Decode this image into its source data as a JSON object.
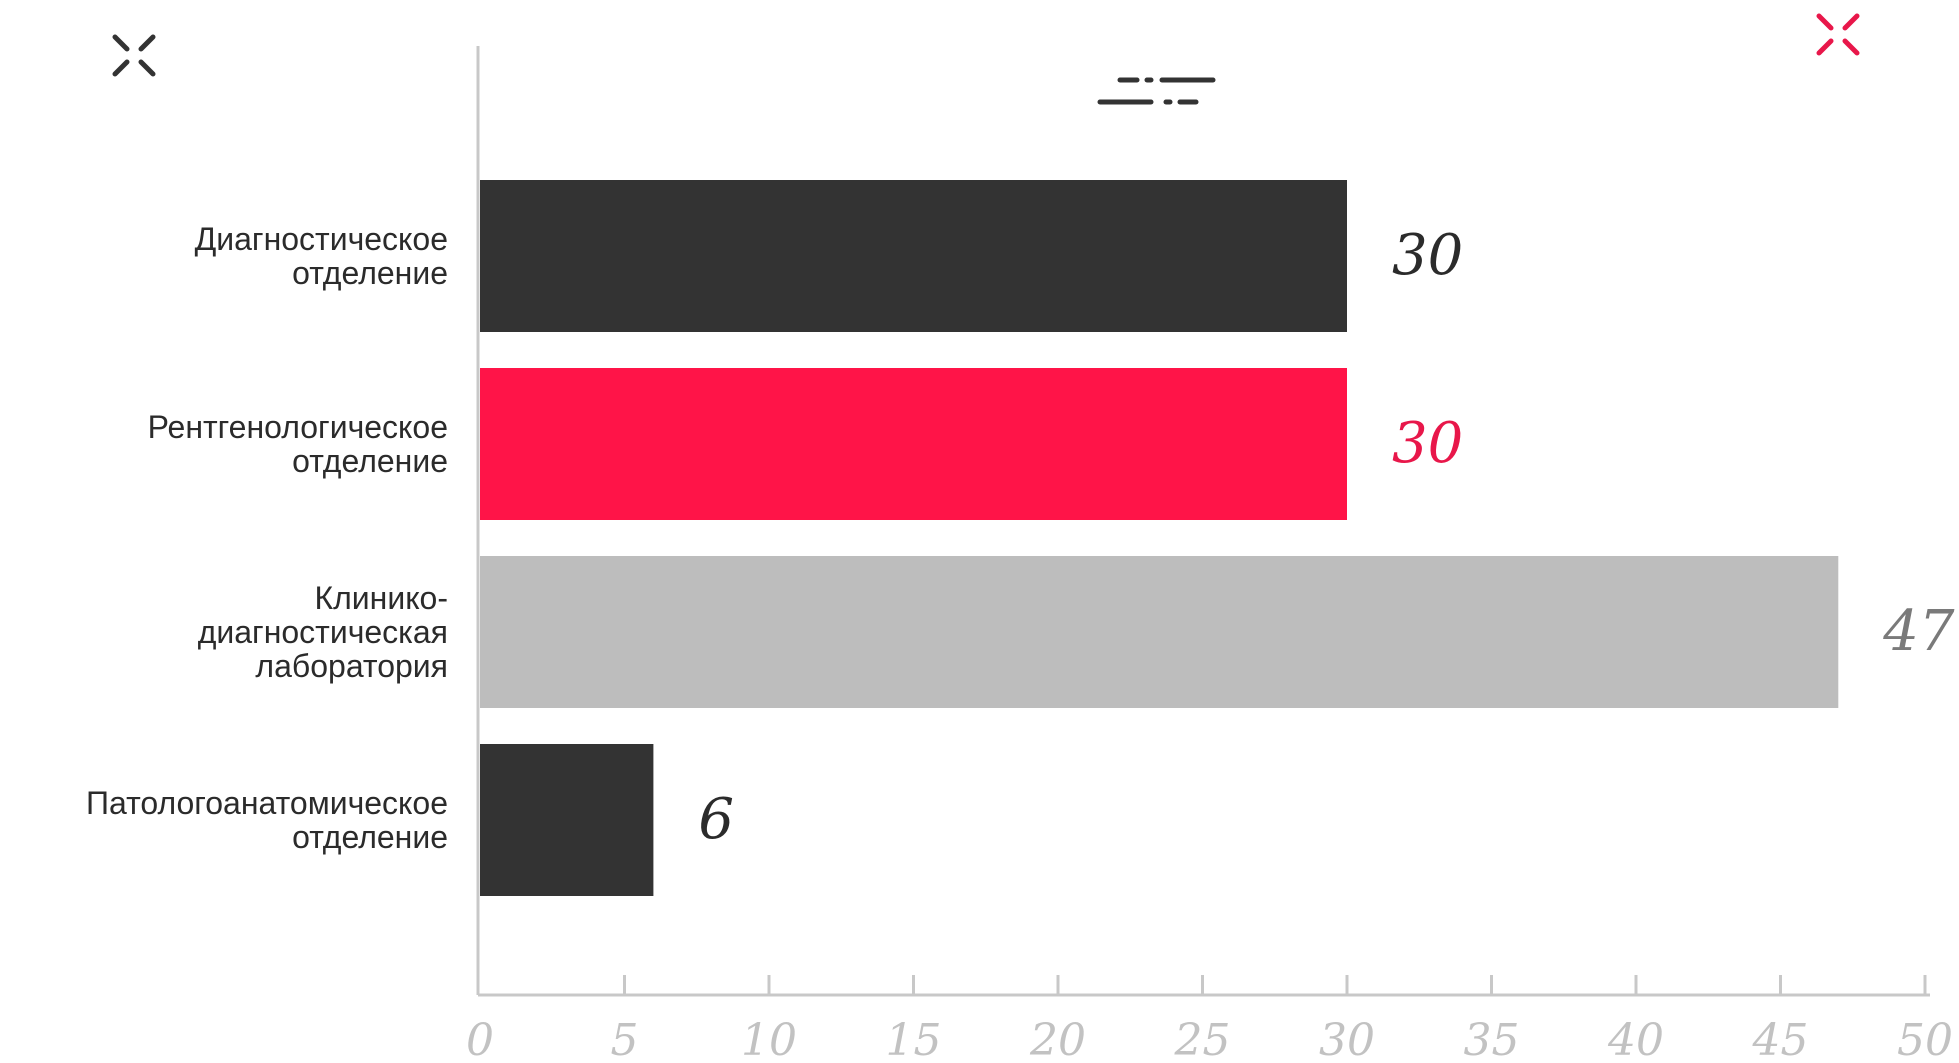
{
  "chart_data": {
    "type": "bar",
    "orientation": "horizontal",
    "categories": [
      [
        "Диагностическое",
        "отделение"
      ],
      [
        "Рентгенологическое",
        "отделение"
      ],
      [
        "Клинико-",
        "диагностическая",
        "лаборатория"
      ],
      [
        "Патологоанатомическое",
        "отделение"
      ]
    ],
    "values": [
      30,
      30,
      47,
      6
    ],
    "value_labels": [
      "30",
      "30",
      "47",
      "6"
    ],
    "bar_colors": [
      "#333333",
      "#ff1448",
      "#bdbdbd",
      "#333333"
    ],
    "value_label_colors": [
      "#2b2b2b",
      "#e8174a",
      "#7a7a7a",
      "#2b2b2b"
    ],
    "xlim": [
      0,
      50
    ],
    "xticks": [
      0,
      5,
      10,
      15,
      20,
      25,
      30,
      35,
      40,
      45,
      50
    ],
    "xtick_labels": [
      "0",
      "5",
      "10",
      "15",
      "20",
      "25",
      "30",
      "35",
      "40",
      "45",
      "50"
    ],
    "grid": false,
    "title": "",
    "xlabel": "",
    "ylabel": ""
  },
  "decorations": {
    "corner_mark_left_color": "#333333",
    "corner_mark_right_color": "#e8174a",
    "dash_ornament_color": "#333333",
    "axis_color": "#c8c8c8"
  }
}
